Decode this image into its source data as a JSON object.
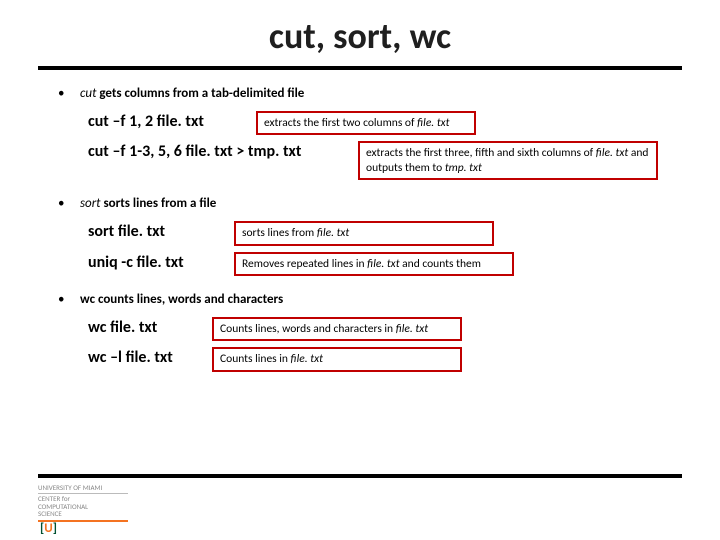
{
  "title": "cut, sort, wc",
  "colors": {
    "rule": "#000000",
    "box_border": "#c00000",
    "bg": "#ffffff"
  },
  "sections": [
    {
      "bullet_html": "<em>cut</em> <strong>gets columns from a tab-delimited file</strong>",
      "items": [
        {
          "cmd": "cut –f 1, 2 file. txt",
          "desc_html": "extracts the first two columns of <em>file. txt</em>",
          "cmd_min_width": 148,
          "gap": 24,
          "desc_width": 220
        },
        {
          "cmd": "cut –f 1-3, 5, 6 file. txt > tmp. txt",
          "desc_html": "extracts the first three, fifth and sixth columns of <em>file. txt</em> and outputs them to <em>tmp. txt</em>",
          "cmd_min_width": 260,
          "gap": 14,
          "desc_width": 300
        }
      ]
    },
    {
      "bullet_html": "<em>sort</em> <strong>sorts lines from a file</strong>",
      "items": [
        {
          "cmd": "sort file. txt",
          "desc_html": "sorts lines from <em>file. txt</em>",
          "cmd_min_width": 126,
          "gap": 24,
          "desc_width": 260
        },
        {
          "cmd": "uniq -c file. txt",
          "desc_html": "Removes repeated lines in <em>file. txt</em> and counts them",
          "cmd_min_width": 126,
          "gap": 24,
          "desc_width": 280
        }
      ]
    },
    {
      "bullet_html": "<strong>wc counts lines, words and characters</strong>",
      "items": [
        {
          "cmd": "wc file. txt",
          "desc_html": "Counts lines, words and characters in <em>file. txt</em>",
          "cmd_min_width": 108,
          "gap": 20,
          "desc_width": 250
        },
        {
          "cmd": "wc –l file. txt",
          "desc_html": "Counts lines in <em>file. txt</em>",
          "cmd_min_width": 108,
          "gap": 20,
          "desc_width": 250
        }
      ]
    }
  ],
  "footer": {
    "line1": "UNIVERSITY OF MIAMI",
    "line2": "CENTER for",
    "line3": "COMPUTATIONAL",
    "line4": "SCIENCE"
  }
}
